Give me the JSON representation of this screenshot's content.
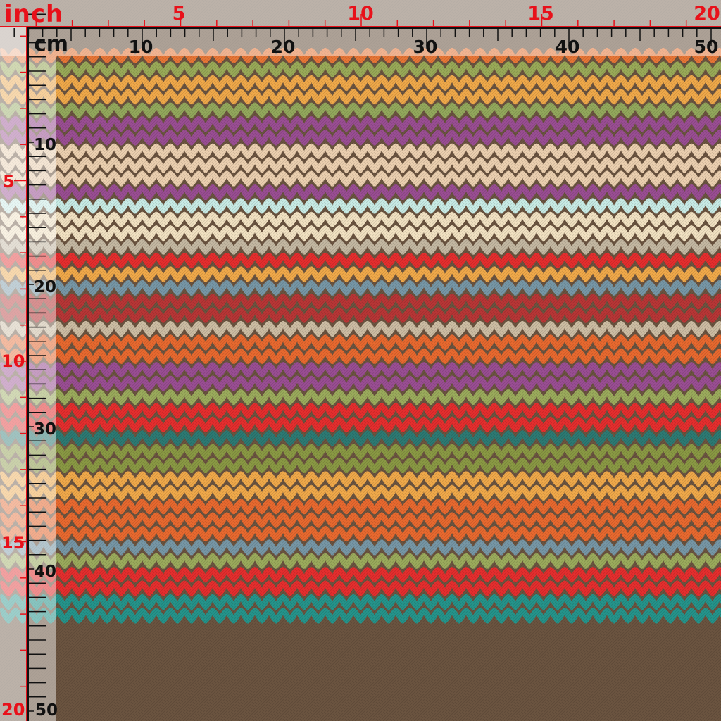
{
  "ruler": {
    "inch_unit_label": "inch",
    "cm_unit_label": "cm",
    "inch_top_labels": [
      "5",
      "10",
      "15",
      "20"
    ],
    "cm_top_labels": [
      "10",
      "20",
      "30",
      "40",
      "50"
    ],
    "inch_left_labels": [
      "5",
      "10",
      "15",
      "20"
    ],
    "cm_left_labels": [
      "10",
      "20",
      "30",
      "40",
      "50"
    ],
    "inch_color": "#e8111a",
    "cm_color": "#111111"
  },
  "fabric": {
    "pattern_name": "knit-stitch-stripes",
    "background_color": "#6b5440",
    "stripes": [
      {
        "rows": 1,
        "color": "#e87636"
      },
      {
        "rows": 1,
        "color": "#9aaa58"
      },
      {
        "rows": 2,
        "color": "#f0a94a"
      },
      {
        "rows": 1,
        "color": "#93a85c"
      },
      {
        "rows": 2,
        "color": "#9a4e93"
      },
      {
        "rows": 3,
        "color": "#ecd0b0"
      },
      {
        "rows": 1,
        "color": "#9a4e93"
      },
      {
        "rows": 1,
        "color": "#c9ece6"
      },
      {
        "rows": 2,
        "color": "#f2e2c2"
      },
      {
        "rows": 1,
        "color": "#c4b8a2"
      },
      {
        "rows": 1,
        "color": "#e52e2e"
      },
      {
        "rows": 1,
        "color": "#f0a94a"
      },
      {
        "rows": 1,
        "color": "#7797a6"
      },
      {
        "rows": 2,
        "color": "#b83636"
      },
      {
        "rows": 1,
        "color": "#cdbda3"
      },
      {
        "rows": 2,
        "color": "#e8692f"
      },
      {
        "rows": 2,
        "color": "#9a4e93"
      },
      {
        "rows": 1,
        "color": "#9bab5c"
      },
      {
        "rows": 2,
        "color": "#e52e2e"
      },
      {
        "rows": 1,
        "color": "#2d7a73"
      },
      {
        "rows": 2,
        "color": "#8a9944"
      },
      {
        "rows": 2,
        "color": "#f0a94a"
      },
      {
        "rows": 3,
        "color": "#e8692f"
      },
      {
        "rows": 1,
        "color": "#7797a6"
      },
      {
        "rows": 1,
        "color": "#9bab5c"
      },
      {
        "rows": 2,
        "color": "#e52e2e"
      },
      {
        "rows": 2,
        "color": "#25948b"
      }
    ]
  }
}
